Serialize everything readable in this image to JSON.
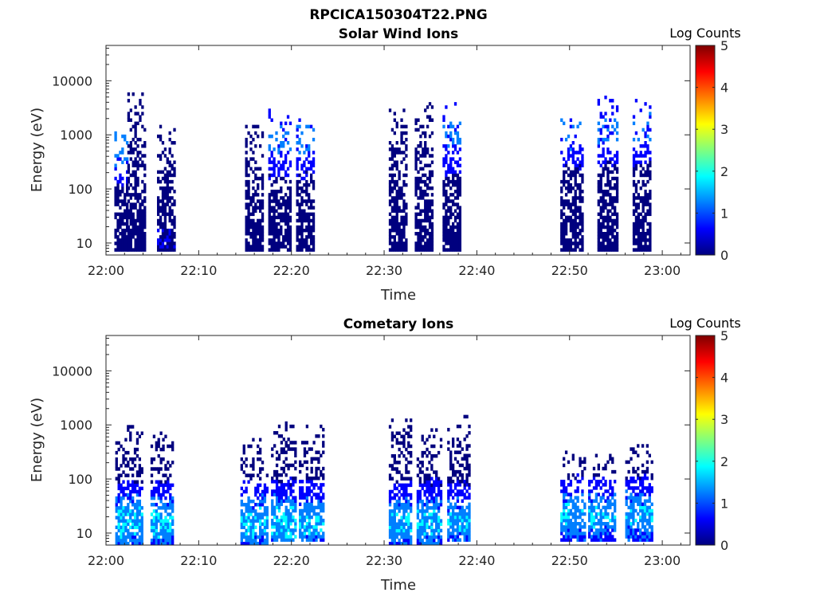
{
  "figure": {
    "title": "RPCICA150304T22.PNG"
  },
  "colormap": [
    "#00007f",
    "#0000ff",
    "#007fff",
    "#00ffff",
    "#7fff7f",
    "#ffff00",
    "#ff7f00",
    "#ff0000",
    "#7f0000"
  ],
  "chart_data": [
    {
      "type": "heatmap",
      "title": "Solar Wind Ions",
      "xlabel": "Time",
      "ylabel": "Energy (eV)",
      "x_ticks": [
        "22:00",
        "22:10",
        "22:20",
        "22:30",
        "22:40",
        "22:50",
        "23:00"
      ],
      "x_tick_minutes": [
        0,
        10,
        20,
        30,
        40,
        50,
        60
      ],
      "xlim_minutes": [
        0,
        63
      ],
      "yscale": "log",
      "ylim": [
        6,
        45000
      ],
      "y_ticks": [
        "10",
        "100",
        "1000",
        "10000"
      ],
      "y_tick_values": [
        10,
        100,
        1000,
        10000
      ],
      "colorbar": {
        "label": "Log Counts",
        "range": [
          0,
          5
        ],
        "ticks": [
          "0",
          "1",
          "2",
          "3",
          "4",
          "5"
        ]
      },
      "grid": false,
      "bursts": [
        {
          "t_start": 0.9,
          "t_end": 2.3,
          "e_min": 7,
          "e_max": 1200,
          "peak": 1.8,
          "peak_energy": 600
        },
        {
          "t_start": 2.3,
          "t_end": 4.3,
          "e_min": 7,
          "e_max": 6000,
          "peak": 0.3,
          "peak_energy": 12
        },
        {
          "t_start": 5.5,
          "t_end": 7.5,
          "e_min": 7,
          "e_max": 1500,
          "peak": 0.4,
          "peak_energy": 12
        },
        {
          "t_start": 15.0,
          "t_end": 17.0,
          "e_min": 7,
          "e_max": 1500,
          "peak": 0.3,
          "peak_energy": 12
        },
        {
          "t_start": 17.5,
          "t_end": 19.8,
          "e_min": 7,
          "e_max": 3000,
          "peak": 1.5,
          "peak_energy": 800
        },
        {
          "t_start": 20.5,
          "t_end": 22.5,
          "e_min": 7,
          "e_max": 2000,
          "peak": 1.5,
          "peak_energy": 800
        },
        {
          "t_start": 30.5,
          "t_end": 32.5,
          "e_min": 7,
          "e_max": 3500,
          "peak": 0.3,
          "peak_energy": 12
        },
        {
          "t_start": 33.3,
          "t_end": 35.3,
          "e_min": 7,
          "e_max": 4000,
          "peak": 0.3,
          "peak_energy": 12
        },
        {
          "t_start": 36.3,
          "t_end": 38.3,
          "e_min": 7,
          "e_max": 5000,
          "peak": 1.4,
          "peak_energy": 800
        },
        {
          "t_start": 49.0,
          "t_end": 51.5,
          "e_min": 7,
          "e_max": 2000,
          "peak": 1.5,
          "peak_energy": 1200
        },
        {
          "t_start": 53.0,
          "t_end": 55.2,
          "e_min": 7,
          "e_max": 5000,
          "peak": 1.3,
          "peak_energy": 1200
        },
        {
          "t_start": 56.8,
          "t_end": 58.8,
          "e_min": 7,
          "e_max": 5000,
          "peak": 1.3,
          "peak_energy": 1200
        }
      ]
    },
    {
      "type": "heatmap",
      "title": "Cometary Ions",
      "xlabel": "Time",
      "ylabel": "Energy (eV)",
      "x_ticks": [
        "22:00",
        "22:10",
        "22:20",
        "22:30",
        "22:40",
        "22:50",
        "23:00"
      ],
      "x_tick_minutes": [
        0,
        10,
        20,
        30,
        40,
        50,
        60
      ],
      "xlim_minutes": [
        0,
        63
      ],
      "yscale": "log",
      "ylim": [
        6,
        45000
      ],
      "y_ticks": [
        "10",
        "100",
        "1000",
        "10000"
      ],
      "y_tick_values": [
        10,
        100,
        1000,
        10000
      ],
      "colorbar": {
        "label": "Log Counts",
        "range": [
          0,
          5
        ],
        "ticks": [
          "0",
          "1",
          "2",
          "3",
          "4",
          "5"
        ]
      },
      "grid": false,
      "bursts": [
        {
          "t_start": 1.0,
          "t_end": 3.8,
          "e_min": 6,
          "e_max": 900,
          "peak": 2.0,
          "peak_energy": 15
        },
        {
          "t_start": 4.8,
          "t_end": 7.2,
          "e_min": 6,
          "e_max": 700,
          "peak": 2.0,
          "peak_energy": 15
        },
        {
          "t_start": 14.5,
          "t_end": 17.5,
          "e_min": 6,
          "e_max": 500,
          "peak": 2.0,
          "peak_energy": 15
        },
        {
          "t_start": 17.8,
          "t_end": 20.5,
          "e_min": 7,
          "e_max": 1100,
          "peak": 2.1,
          "peak_energy": 15
        },
        {
          "t_start": 20.8,
          "t_end": 23.5,
          "e_min": 7,
          "e_max": 900,
          "peak": 1.9,
          "peak_energy": 15
        },
        {
          "t_start": 30.5,
          "t_end": 33.0,
          "e_min": 6,
          "e_max": 1200,
          "peak": 1.9,
          "peak_energy": 15
        },
        {
          "t_start": 33.5,
          "t_end": 36.2,
          "e_min": 6,
          "e_max": 800,
          "peak": 1.9,
          "peak_energy": 15
        },
        {
          "t_start": 36.8,
          "t_end": 39.2,
          "e_min": 7,
          "e_max": 1500,
          "peak": 1.8,
          "peak_energy": 15
        },
        {
          "t_start": 49.0,
          "t_end": 51.6,
          "e_min": 7,
          "e_max": 300,
          "peak": 1.8,
          "peak_energy": 20
        },
        {
          "t_start": 52.0,
          "t_end": 55.0,
          "e_min": 7,
          "e_max": 300,
          "peak": 1.8,
          "peak_energy": 20
        },
        {
          "t_start": 56.0,
          "t_end": 58.8,
          "e_min": 7,
          "e_max": 400,
          "peak": 1.8,
          "peak_energy": 20
        }
      ]
    }
  ]
}
